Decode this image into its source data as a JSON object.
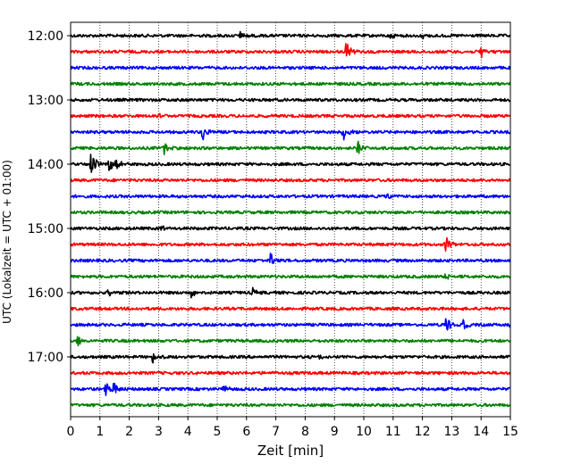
{
  "chart_data": {
    "type": "line",
    "subtype": "helicorder-seismogram",
    "title": "",
    "xlabel": "Zeit  [min]",
    "ylabel": "UTC (Lokalzeit = UTC + 01:00)",
    "xlim": [
      0,
      15
    ],
    "x_ticks": [
      "0",
      "1",
      "2",
      "3",
      "4",
      "5",
      "6",
      "7",
      "8",
      "9",
      "10",
      "11",
      "12",
      "13",
      "14",
      "15"
    ],
    "y_tick_labels": [
      "12:00",
      "13:00",
      "14:00",
      "15:00",
      "16:00",
      "17:00"
    ],
    "grid": {
      "vertical": true,
      "style": "dotted"
    },
    "trace_start": "12:00",
    "trace_interval_min": 15,
    "color_cycle": [
      "#000000",
      "#ff0000",
      "#0000ff",
      "#008000"
    ],
    "series": [
      {
        "start": "12:00",
        "color": "#000000",
        "events": [
          {
            "x": 5.8,
            "amp": 0.25
          },
          {
            "x": 10.9,
            "amp": 0.2
          },
          {
            "x": 12.0,
            "amp": 0.15
          }
        ]
      },
      {
        "start": "12:15",
        "color": "#ff0000",
        "events": [
          {
            "x": 9.4,
            "amp": 0.55
          },
          {
            "x": 14.0,
            "amp": 0.45
          }
        ]
      },
      {
        "start": "12:30",
        "color": "#0000ff",
        "events": []
      },
      {
        "start": "12:45",
        "color": "#008000",
        "events": []
      },
      {
        "start": "13:00",
        "color": "#000000",
        "events": []
      },
      {
        "start": "13:15",
        "color": "#ff0000",
        "events": [
          {
            "x": 3.0,
            "amp": 0.3
          }
        ]
      },
      {
        "start": "13:30",
        "color": "#0000ff",
        "events": [
          {
            "x": 4.5,
            "amp": 0.6
          },
          {
            "x": 9.3,
            "amp": 0.55
          }
        ]
      },
      {
        "start": "13:45",
        "color": "#008000",
        "events": [
          {
            "x": 3.2,
            "amp": 0.45
          },
          {
            "x": 9.8,
            "amp": 0.4
          }
        ]
      },
      {
        "start": "14:00",
        "color": "#000000",
        "events": [
          {
            "x": 0.7,
            "amp": 0.8
          },
          {
            "x": 1.3,
            "amp": 0.5
          },
          {
            "x": 1.55,
            "amp": 0.55
          }
        ]
      },
      {
        "start": "14:15",
        "color": "#ff0000",
        "events": []
      },
      {
        "start": "14:30",
        "color": "#0000ff",
        "events": [
          {
            "x": 10.8,
            "amp": 0.2
          }
        ]
      },
      {
        "start": "14:45",
        "color": "#008000",
        "events": []
      },
      {
        "start": "15:00",
        "color": "#000000",
        "events": [
          {
            "x": 3.1,
            "amp": 0.2
          }
        ]
      },
      {
        "start": "15:15",
        "color": "#ff0000",
        "events": [
          {
            "x": 12.8,
            "amp": 0.45
          }
        ]
      },
      {
        "start": "15:30",
        "color": "#0000ff",
        "events": [
          {
            "x": 6.8,
            "amp": 0.45
          }
        ]
      },
      {
        "start": "15:45",
        "color": "#008000",
        "events": [
          {
            "x": 12.8,
            "amp": 0.25
          }
        ]
      },
      {
        "start": "16:00",
        "color": "#000000",
        "events": [
          {
            "x": 1.3,
            "amp": 0.25
          },
          {
            "x": 4.1,
            "amp": 0.3
          },
          {
            "x": 6.2,
            "amp": 0.25
          }
        ]
      },
      {
        "start": "16:15",
        "color": "#ff0000",
        "events": []
      },
      {
        "start": "16:30",
        "color": "#0000ff",
        "events": [
          {
            "x": 12.8,
            "amp": 0.6
          },
          {
            "x": 13.4,
            "amp": 0.3
          },
          {
            "x": 15.0,
            "amp": 0.3
          }
        ]
      },
      {
        "start": "16:45",
        "color": "#008000",
        "events": [
          {
            "x": 0.2,
            "amp": 0.55
          }
        ]
      },
      {
        "start": "17:00",
        "color": "#000000",
        "events": [
          {
            "x": 2.8,
            "amp": 0.4
          },
          {
            "x": 8.5,
            "amp": 0.15
          }
        ]
      },
      {
        "start": "17:15",
        "color": "#ff0000",
        "events": []
      },
      {
        "start": "17:30",
        "color": "#0000ff",
        "events": [
          {
            "x": 1.2,
            "amp": 0.45
          },
          {
            "x": 1.45,
            "amp": 0.6
          },
          {
            "x": 5.2,
            "amp": 0.3
          }
        ]
      },
      {
        "start": "17:45",
        "color": "#008000",
        "events": []
      }
    ]
  }
}
